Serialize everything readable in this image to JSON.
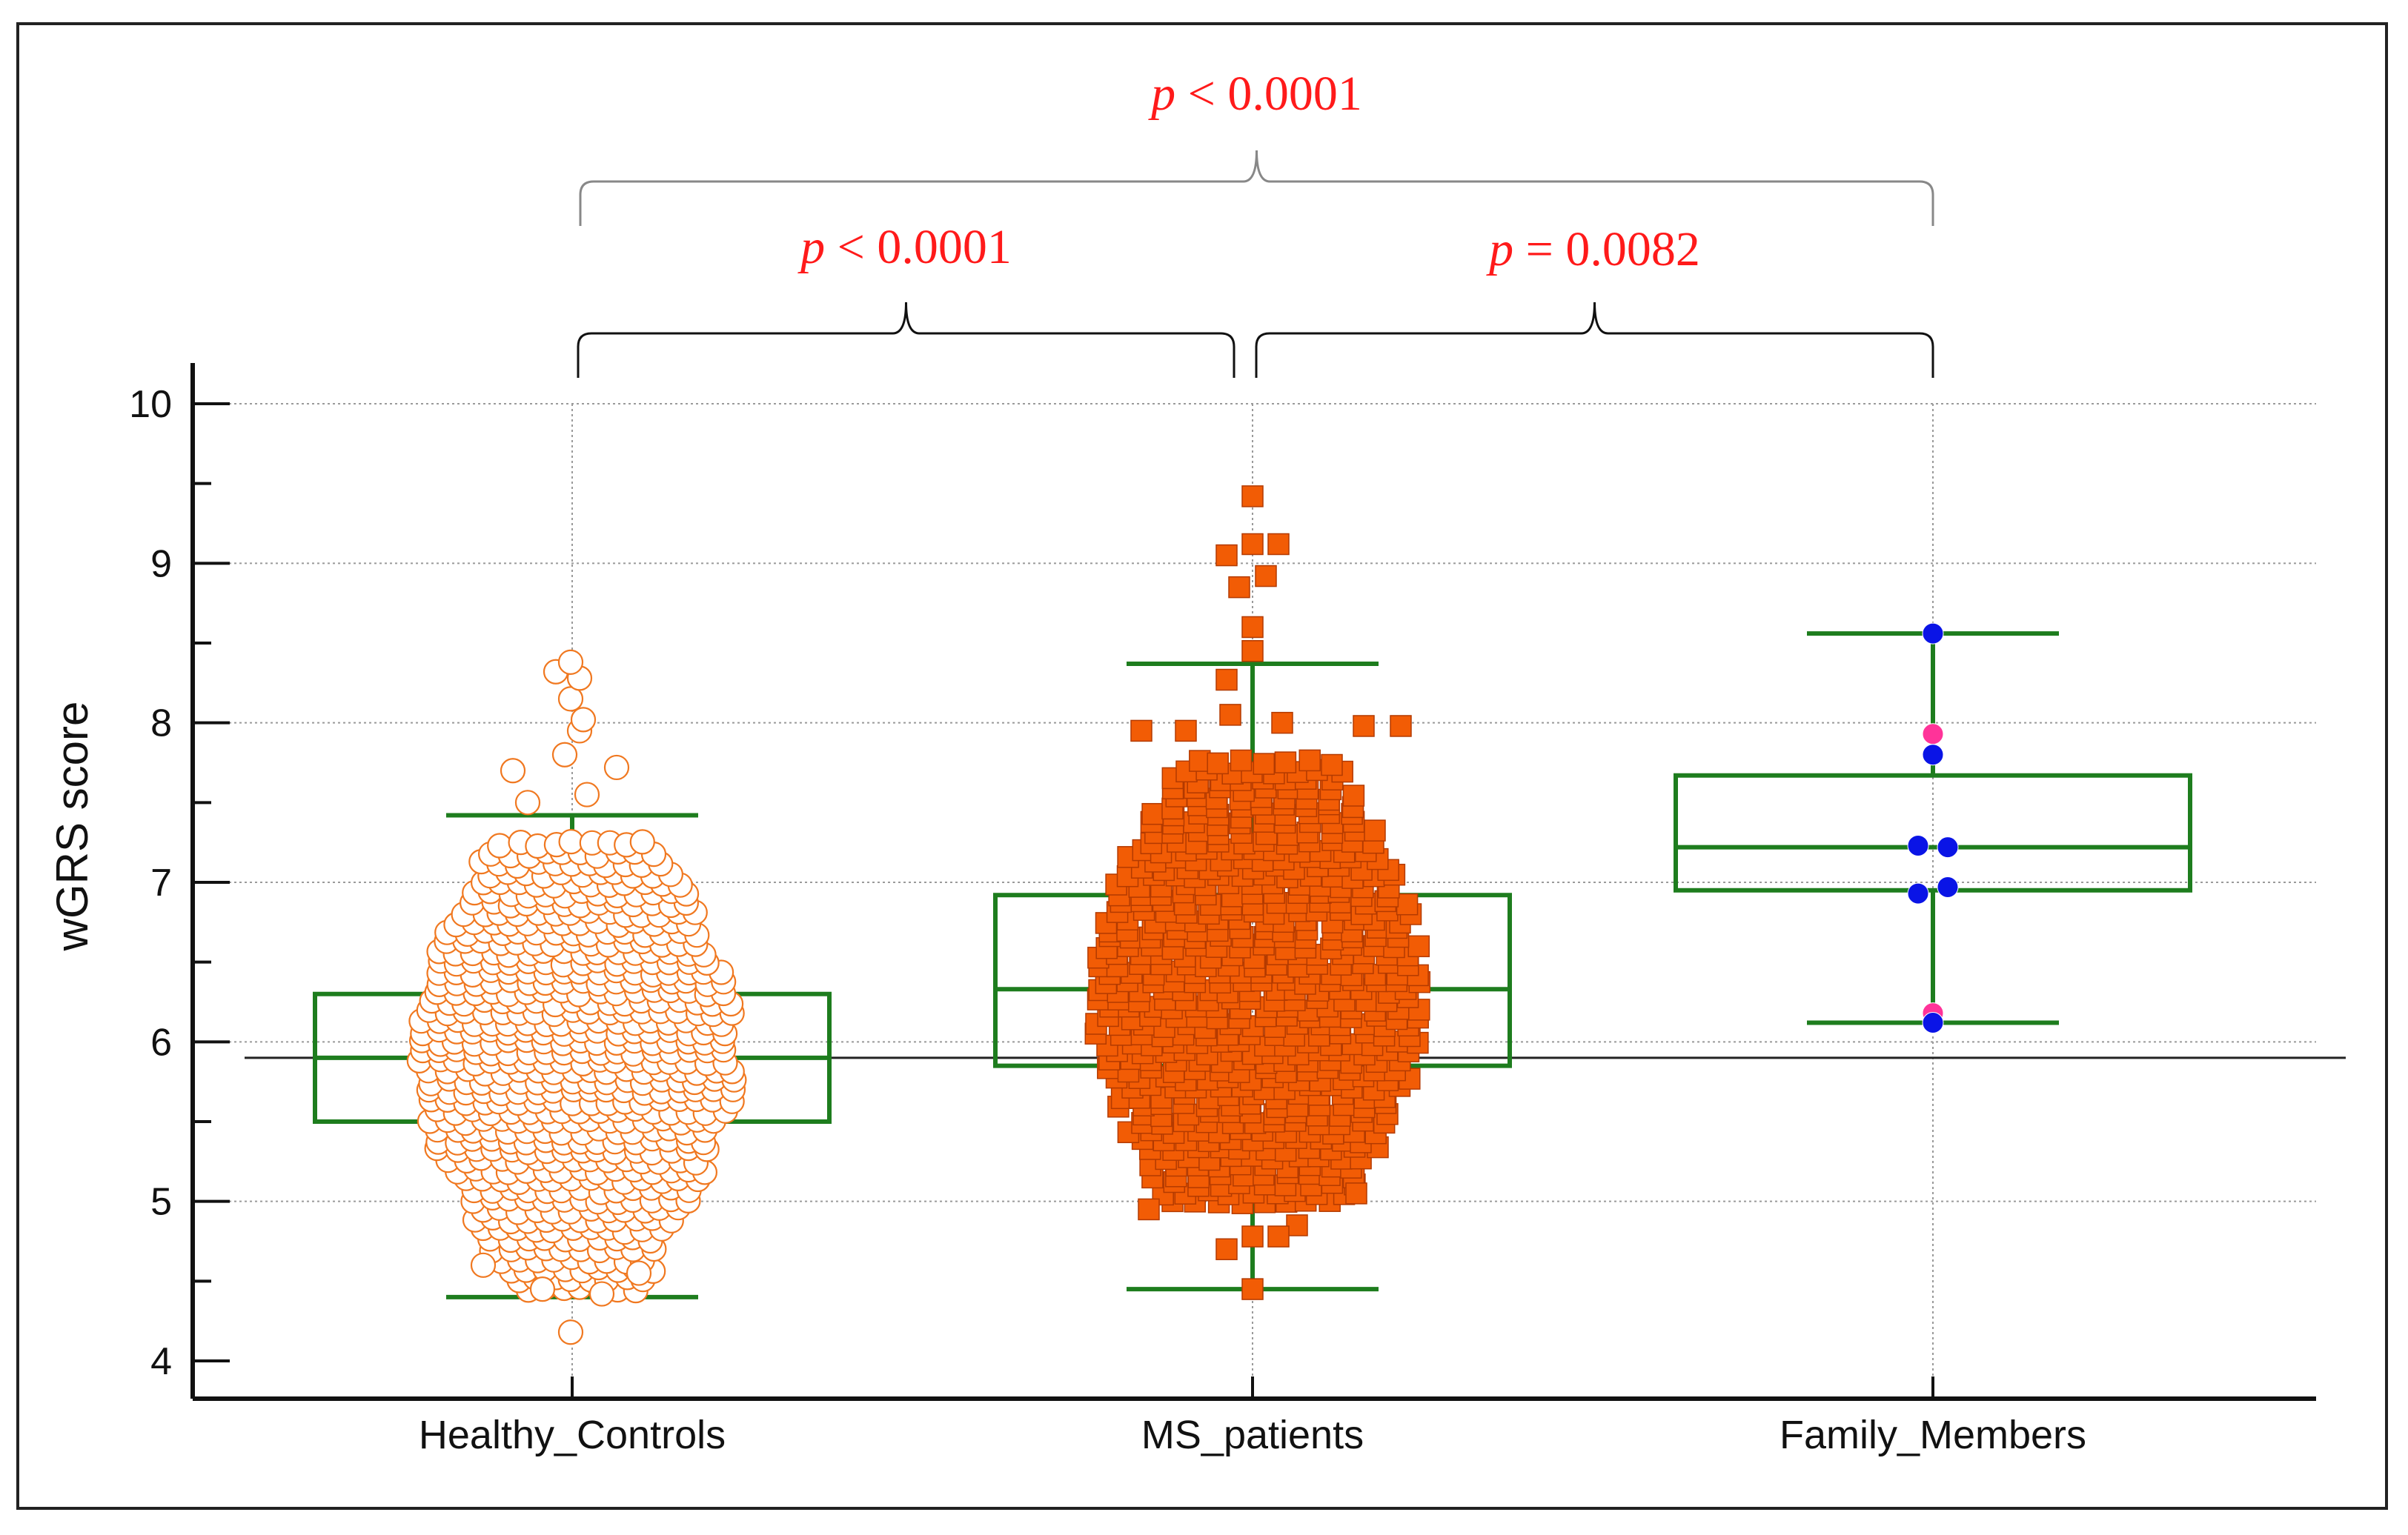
{
  "chart_data": {
    "type": "box-dot",
    "ylabel": "wGRS score",
    "ylim": [
      4,
      10
    ],
    "yticks": [
      4,
      5,
      6,
      7,
      8,
      9,
      10
    ],
    "grid": true,
    "reference_line": 5.9,
    "categories": [
      "Healthy_Controls",
      "MS_patients",
      "Family_Members"
    ],
    "boxes": [
      {
        "name": "Healthy_Controls",
        "q1": 5.5,
        "median": 5.9,
        "q3": 6.3,
        "whisker_low": 4.4,
        "whisker_high": 7.42,
        "point_style": "open-circle",
        "point_color": "#f07820"
      },
      {
        "name": "MS_patients",
        "q1": 5.85,
        "median": 6.33,
        "q3": 6.92,
        "whisker_low": 4.45,
        "whisker_high": 8.37,
        "point_style": "filled-square",
        "point_color": "#f25c05"
      },
      {
        "name": "Family_Members",
        "q1": 6.95,
        "median": 7.22,
        "q3": 7.67,
        "whisker_low": 6.12,
        "whisker_high": 8.56,
        "point_style": "filled-circle",
        "point_color": "#0a14e6"
      }
    ],
    "family_points": [
      {
        "value": 8.56,
        "color": "#0a14e6"
      },
      {
        "value": 7.93,
        "color": "#ff3399"
      },
      {
        "value": 7.8,
        "color": "#0a14e6"
      },
      {
        "value": 7.23,
        "color": "#0a14e6"
      },
      {
        "value": 7.22,
        "color": "#0a14e6"
      },
      {
        "value": 6.97,
        "color": "#0a14e6"
      },
      {
        "value": 6.93,
        "color": "#0a14e6"
      },
      {
        "value": 6.18,
        "color": "#ff3399"
      },
      {
        "value": 6.12,
        "color": "#0a14e6"
      }
    ],
    "comparisons": [
      {
        "from": "Healthy_Controls",
        "to": "Family_Members",
        "label_italic": "p",
        "label_rest": " < 0.0001"
      },
      {
        "from": "Healthy_Controls",
        "to": "MS_patients",
        "label_italic": "p",
        "label_rest": " < 0.0001"
      },
      {
        "from": "MS_patients",
        "to": "Family_Members",
        "label_italic": "p",
        "label_rest": " = 0.0082"
      }
    ],
    "colors": {
      "box": "#1e7d1e",
      "grid": "#9a9a9a",
      "axis": "#111111",
      "pvalue": "#ff1a1a",
      "bracket": "#666666"
    }
  }
}
